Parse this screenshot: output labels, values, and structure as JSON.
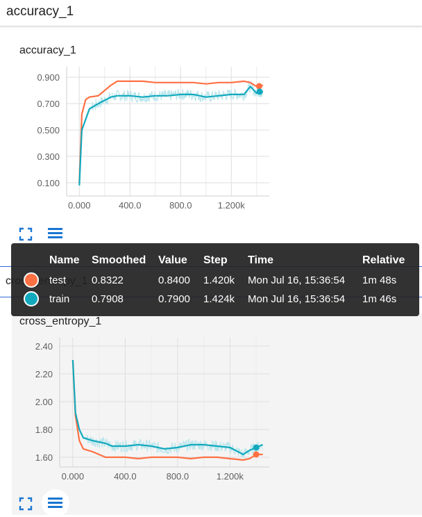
{
  "section": {
    "title": "accuracy_1"
  },
  "charts": {
    "accuracy": {
      "title": "accuracy_1"
    },
    "cross_entropy": {
      "title": "cross_entropy_1",
      "occluded_title": "cross_entropy_1"
    }
  },
  "icons": {
    "expand": "expand-icon",
    "data_table": "data-table-icon"
  },
  "colors": {
    "test": "#ff7043",
    "train": "#12a9bd",
    "train_raw": "#b9e6ec",
    "accent": "#1976d2"
  },
  "tooltip": {
    "headers": [
      "Name",
      "Smoothed",
      "Value",
      "Step",
      "Time",
      "Relative"
    ],
    "rows": [
      {
        "name": "test",
        "smoothed": "0.8322",
        "value": "0.8400",
        "step": "1.420k",
        "time": "Mon Jul 16, 15:36:54",
        "relative": "1m 48s"
      },
      {
        "name": "train",
        "smoothed": "0.7908",
        "value": "0.7900",
        "step": "1.424k",
        "time": "Mon Jul 16, 15:36:54",
        "relative": "1m 46s"
      }
    ]
  },
  "chart_data": [
    {
      "type": "line",
      "title": "accuracy_1",
      "xlabel": "",
      "ylabel": "",
      "x_ticks": [
        "0.000",
        "400.0",
        "800.0",
        "1.200k"
      ],
      "y_ticks": [
        "0.900",
        "0.700",
        "0.500",
        "0.300",
        "0.100"
      ],
      "xlim": [
        -100,
        1500
      ],
      "ylim": [
        0.0,
        0.98
      ],
      "grid": true,
      "series": [
        {
          "name": "test",
          "x": [
            0,
            20,
            50,
            80,
            150,
            250,
            300,
            400,
            500,
            600,
            700,
            800,
            900,
            1000,
            1100,
            1200,
            1300,
            1350,
            1400,
            1420,
            1450
          ],
          "y": [
            0.1,
            0.62,
            0.73,
            0.75,
            0.76,
            0.84,
            0.87,
            0.87,
            0.87,
            0.86,
            0.86,
            0.86,
            0.86,
            0.85,
            0.86,
            0.86,
            0.87,
            0.86,
            0.83,
            0.8322,
            0.84
          ]
        },
        {
          "name": "train",
          "x": [
            0,
            20,
            50,
            80,
            150,
            250,
            300,
            400,
            500,
            600,
            700,
            800,
            900,
            1000,
            1100,
            1200,
            1300,
            1350,
            1400,
            1424,
            1450
          ],
          "y": [
            0.08,
            0.5,
            0.58,
            0.66,
            0.7,
            0.75,
            0.76,
            0.76,
            0.75,
            0.76,
            0.76,
            0.77,
            0.77,
            0.75,
            0.76,
            0.77,
            0.77,
            0.83,
            0.78,
            0.7908,
            0.79
          ]
        }
      ]
    },
    {
      "type": "line",
      "title": "cross_entropy_1",
      "xlabel": "",
      "ylabel": "",
      "x_ticks": [
        "0.000",
        "400.0",
        "800.0",
        "1.200k"
      ],
      "y_ticks": [
        "2.40",
        "2.20",
        "2.00",
        "1.80",
        "1.60"
      ],
      "xlim": [
        -100,
        1500
      ],
      "ylim": [
        1.53,
        2.46
      ],
      "grid": true,
      "series": [
        {
          "name": "test",
          "x": [
            0,
            20,
            50,
            80,
            150,
            250,
            300,
            400,
            500,
            600,
            700,
            800,
            900,
            1000,
            1100,
            1200,
            1300,
            1350,
            1400,
            1450
          ],
          "y": [
            2.3,
            1.9,
            1.72,
            1.66,
            1.64,
            1.6,
            1.6,
            1.6,
            1.59,
            1.6,
            1.6,
            1.6,
            1.59,
            1.6,
            1.6,
            1.59,
            1.58,
            1.59,
            1.62,
            1.62
          ]
        },
        {
          "name": "train",
          "x": [
            0,
            20,
            50,
            80,
            150,
            250,
            300,
            400,
            500,
            600,
            700,
            800,
            900,
            1000,
            1100,
            1200,
            1300,
            1350,
            1400,
            1450
          ],
          "y": [
            2.3,
            1.92,
            1.8,
            1.74,
            1.72,
            1.7,
            1.68,
            1.68,
            1.69,
            1.68,
            1.66,
            1.67,
            1.69,
            1.69,
            1.68,
            1.67,
            1.62,
            1.65,
            1.67,
            1.69
          ]
        }
      ]
    }
  ]
}
